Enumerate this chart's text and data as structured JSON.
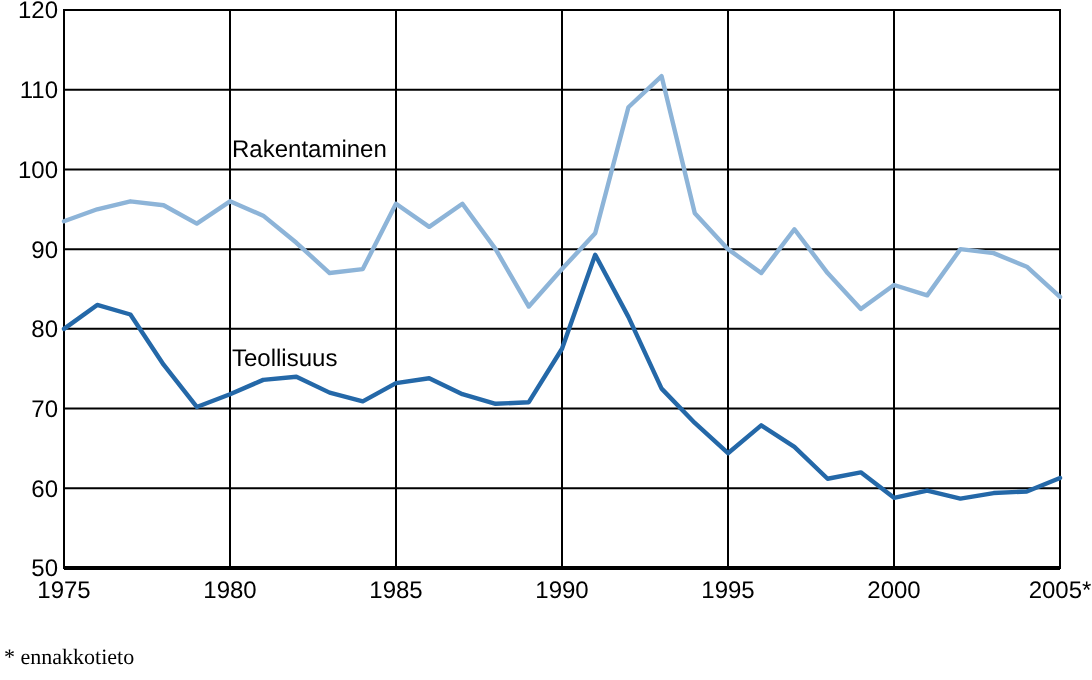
{
  "chart_data": {
    "type": "line",
    "x": [
      1975,
      1976,
      1977,
      1978,
      1979,
      1980,
      1981,
      1982,
      1983,
      1984,
      1985,
      1986,
      1987,
      1988,
      1989,
      1990,
      1991,
      1992,
      1993,
      1994,
      1995,
      1996,
      1997,
      1998,
      1999,
      2000,
      2001,
      2002,
      2003,
      2004,
      2005
    ],
    "series": [
      {
        "name": "Rakentaminen",
        "color": "#8db4d8",
        "values": [
          93.5,
          95,
          96,
          95.5,
          93.2,
          96,
          94.2,
          90.8,
          87,
          87.5,
          95.7,
          92.8,
          95.7,
          90,
          82.8,
          87.5,
          92,
          107.8,
          111.7,
          94.5,
          90,
          87,
          92.5,
          87,
          82.5,
          85.5,
          84.2,
          90,
          89.5,
          87.8,
          84
        ]
      },
      {
        "name": "Teollisuus",
        "color": "#2468a8",
        "values": [
          80,
          83,
          81.8,
          75.5,
          70.2,
          71.8,
          73.6,
          74,
          72,
          70.9,
          73.2,
          73.8,
          71.8,
          70.6,
          70.8,
          77.5,
          89.3,
          81.5,
          72.5,
          68.2,
          64.4,
          67.9,
          65.2,
          61.2,
          62,
          58.8,
          59.7,
          58.7,
          59.4,
          59.6,
          61.3
        ]
      }
    ],
    "xlim": [
      1975,
      2005
    ],
    "xticks": [
      1975,
      1980,
      1985,
      1990,
      1995,
      2000,
      {
        "value": 2005,
        "label": "2005*"
      }
    ],
    "ylim": [
      50,
      120
    ],
    "yticks": [
      50,
      60,
      70,
      80,
      90,
      100,
      110,
      120
    ],
    "grid": true,
    "marker": "none",
    "line_style": "solid",
    "annotations": [
      "* ennakkotieto"
    ]
  }
}
